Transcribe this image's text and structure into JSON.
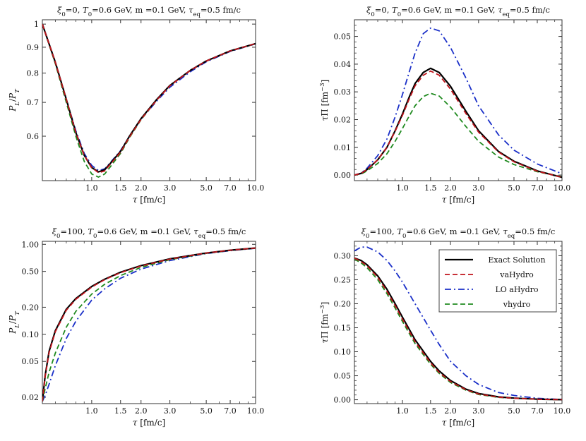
{
  "legend": [
    {
      "label": "Exact Solution",
      "color": "#000000",
      "dash": "solid"
    },
    {
      "label": "vaHydro",
      "color": "#c0141c",
      "dash": "dashed"
    },
    {
      "label": "LO aHydro",
      "color": "#1a2fc8",
      "dash": "dashdot"
    },
    {
      "label": "vhydro",
      "color": "#1f8a1f",
      "dash": "dashed"
    }
  ],
  "chart_data": [
    {
      "type": "line",
      "title": "ξ0=0, T0=0.6 GeV, m =0.1 GeV, τeq=0.5 fm/c",
      "xlabel": "τ [fm/c]",
      "ylabel": "PL/PT",
      "xscale": "log",
      "yscale": "log",
      "xlim": [
        0.5,
        10.0
      ],
      "ylim": [
        0.49,
        1.02
      ],
      "xticks": [
        "1.0",
        "1.5",
        "2.0",
        "3.0",
        "5.0",
        "7.0",
        "10.0"
      ],
      "yticks": [
        "0.6",
        "0.7",
        "0.8",
        "0.9",
        "1"
      ],
      "x": [
        0.5,
        0.6,
        0.7,
        0.8,
        0.9,
        1.0,
        1.1,
        1.2,
        1.3,
        1.5,
        1.7,
        2.0,
        2.5,
        3.0,
        4.0,
        5.0,
        7.0,
        10.0
      ],
      "series": [
        {
          "name": "Exact Solution",
          "values": [
            1.0,
            0.84,
            0.71,
            0.61,
            0.55,
            0.52,
            0.51,
            0.515,
            0.53,
            0.56,
            0.6,
            0.65,
            0.71,
            0.756,
            0.81,
            0.845,
            0.885,
            0.915
          ]
        },
        {
          "name": "vaHydro",
          "values": [
            1.0,
            0.84,
            0.71,
            0.61,
            0.55,
            0.52,
            0.508,
            0.512,
            0.528,
            0.558,
            0.598,
            0.648,
            0.708,
            0.755,
            0.81,
            0.845,
            0.885,
            0.915
          ]
        },
        {
          "name": "LO aHydro",
          "values": [
            1.0,
            0.84,
            0.71,
            0.615,
            0.555,
            0.525,
            0.513,
            0.517,
            0.532,
            0.562,
            0.6,
            0.648,
            0.705,
            0.75,
            0.805,
            0.842,
            0.883,
            0.914
          ]
        },
        {
          "name": "vhydro",
          "values": [
            1.0,
            0.835,
            0.7,
            0.6,
            0.535,
            0.505,
            0.498,
            0.505,
            0.522,
            0.555,
            0.596,
            0.647,
            0.708,
            0.755,
            0.81,
            0.845,
            0.885,
            0.915
          ]
        }
      ]
    },
    {
      "type": "line",
      "title": "ξ0=0, T0=0.6 GeV, m =0.1 GeV, τeq=0.5 fm/c",
      "xlabel": "τ [fm/c]",
      "ylabel": "τΠ [fm−3]",
      "xscale": "log",
      "yscale": "linear",
      "xlim": [
        0.5,
        10.0
      ],
      "ylim": [
        -0.002,
        0.056
      ],
      "xticks": [
        "1.0",
        "1.5",
        "2.0",
        "3.0",
        "5.0",
        "7.0",
        "10.0"
      ],
      "yticks": [
        "0.00",
        "0.01",
        "0.02",
        "0.03",
        "0.04",
        "0.05"
      ],
      "x": [
        0.5,
        0.55,
        0.6,
        0.7,
        0.8,
        0.9,
        1.0,
        1.1,
        1.2,
        1.35,
        1.5,
        1.7,
        2.0,
        2.5,
        3.0,
        4.0,
        5.0,
        7.0,
        10.0
      ],
      "series": [
        {
          "name": "Exact Solution",
          "values": [
            0.0,
            0.0006,
            0.002,
            0.0055,
            0.01,
            0.016,
            0.022,
            0.028,
            0.033,
            0.037,
            0.0385,
            0.037,
            0.032,
            0.023,
            0.016,
            0.0085,
            0.005,
            0.0015,
            -0.0008
          ]
        },
        {
          "name": "vaHydro",
          "values": [
            0.0,
            0.0006,
            0.002,
            0.0055,
            0.01,
            0.0158,
            0.0215,
            0.0273,
            0.0322,
            0.036,
            0.0375,
            0.036,
            0.031,
            0.0222,
            0.0155,
            0.0083,
            0.0048,
            0.0014,
            -0.0008
          ]
        },
        {
          "name": "LO aHydro",
          "values": [
            0.0,
            0.0007,
            0.0025,
            0.007,
            0.013,
            0.021,
            0.029,
            0.037,
            0.044,
            0.051,
            0.053,
            0.052,
            0.046,
            0.035,
            0.025,
            0.0145,
            0.009,
            0.004,
            0.0005
          ]
        },
        {
          "name": "vhydro",
          "values": [
            0.0,
            0.0004,
            0.0015,
            0.0042,
            0.0077,
            0.0122,
            0.0168,
            0.0212,
            0.025,
            0.0283,
            0.0295,
            0.0285,
            0.0245,
            0.0175,
            0.0122,
            0.0065,
            0.0038,
            0.0012,
            -0.0006
          ]
        }
      ]
    },
    {
      "type": "line",
      "title": "ξ0=100, T0=0.6 GeV, m =0.1 GeV, τeq=0.5 fm/c",
      "xlabel": "τ [fm/c]",
      "ylabel": "PL/PT",
      "xscale": "log",
      "yscale": "log",
      "xlim": [
        0.5,
        10.0
      ],
      "ylim": [
        0.017,
        1.08
      ],
      "xticks": [
        "1.0",
        "1.5",
        "2.0",
        "3.0",
        "5.0",
        "7.0",
        "10.0"
      ],
      "yticks": [
        "0.02",
        "0.05",
        "0.10",
        "0.20",
        "0.50",
        "1.00"
      ],
      "x": [
        0.5,
        0.52,
        0.55,
        0.6,
        0.7,
        0.8,
        1.0,
        1.2,
        1.5,
        2.0,
        3.0,
        5.0,
        7.0,
        10.0
      ],
      "series": [
        {
          "name": "Exact Solution",
          "values": [
            0.018,
            0.035,
            0.065,
            0.11,
            0.19,
            0.25,
            0.34,
            0.41,
            0.49,
            0.58,
            0.69,
            0.8,
            0.86,
            0.91
          ]
        },
        {
          "name": "vaHydro",
          "values": [
            0.018,
            0.034,
            0.063,
            0.107,
            0.185,
            0.245,
            0.335,
            0.405,
            0.485,
            0.575,
            0.685,
            0.8,
            0.86,
            0.91
          ]
        },
        {
          "name": "LO aHydro",
          "values": [
            0.018,
            0.021,
            0.028,
            0.045,
            0.09,
            0.14,
            0.24,
            0.32,
            0.42,
            0.53,
            0.66,
            0.79,
            0.85,
            0.905
          ]
        },
        {
          "name": "vhydro",
          "values": [
            0.018,
            0.025,
            0.038,
            0.062,
            0.12,
            0.18,
            0.28,
            0.36,
            0.45,
            0.555,
            0.675,
            0.795,
            0.855,
            0.908
          ]
        }
      ]
    },
    {
      "type": "line",
      "title": "ξ0=100, T0=0.6 GeV, m =0.1 GeV, τeq=0.5 fm/c",
      "xlabel": "τ [fm/c]",
      "ylabel": "τΠ [fm−3]",
      "xscale": "log",
      "yscale": "linear",
      "xlim": [
        0.5,
        10.0
      ],
      "ylim": [
        -0.008,
        0.33
      ],
      "xticks": [
        "1.0",
        "1.5",
        "2.0",
        "3.0",
        "5.0",
        "7.0",
        "10.0"
      ],
      "yticks": [
        "0.00",
        "0.05",
        "0.10",
        "0.15",
        "0.20",
        "0.25",
        "0.30"
      ],
      "x": [
        0.5,
        0.55,
        0.6,
        0.7,
        0.8,
        0.9,
        1.0,
        1.2,
        1.5,
        1.7,
        2.0,
        2.5,
        3.0,
        4.0,
        5.0,
        7.0,
        10.0
      ],
      "series": [
        {
          "name": "Exact Solution",
          "values": [
            0.295,
            0.29,
            0.281,
            0.258,
            0.23,
            0.2,
            0.172,
            0.125,
            0.08,
            0.06,
            0.04,
            0.022,
            0.013,
            0.006,
            0.0035,
            0.0012,
            0.0002
          ]
        },
        {
          "name": "vaHydro",
          "values": [
            0.295,
            0.288,
            0.279,
            0.255,
            0.226,
            0.196,
            0.168,
            0.121,
            0.077,
            0.057,
            0.038,
            0.021,
            0.012,
            0.0055,
            0.0032,
            0.0011,
            0.0002
          ]
        },
        {
          "name": "LO aHydro",
          "values": [
            0.31,
            0.318,
            0.318,
            0.308,
            0.29,
            0.268,
            0.245,
            0.2,
            0.145,
            0.115,
            0.08,
            0.05,
            0.032,
            0.015,
            0.009,
            0.003,
            0.0005
          ]
        },
        {
          "name": "vhydro",
          "values": [
            0.293,
            0.285,
            0.275,
            0.25,
            0.221,
            0.191,
            0.163,
            0.117,
            0.074,
            0.055,
            0.036,
            0.02,
            0.011,
            0.005,
            0.003,
            0.001,
            0.0002
          ]
        }
      ]
    }
  ]
}
